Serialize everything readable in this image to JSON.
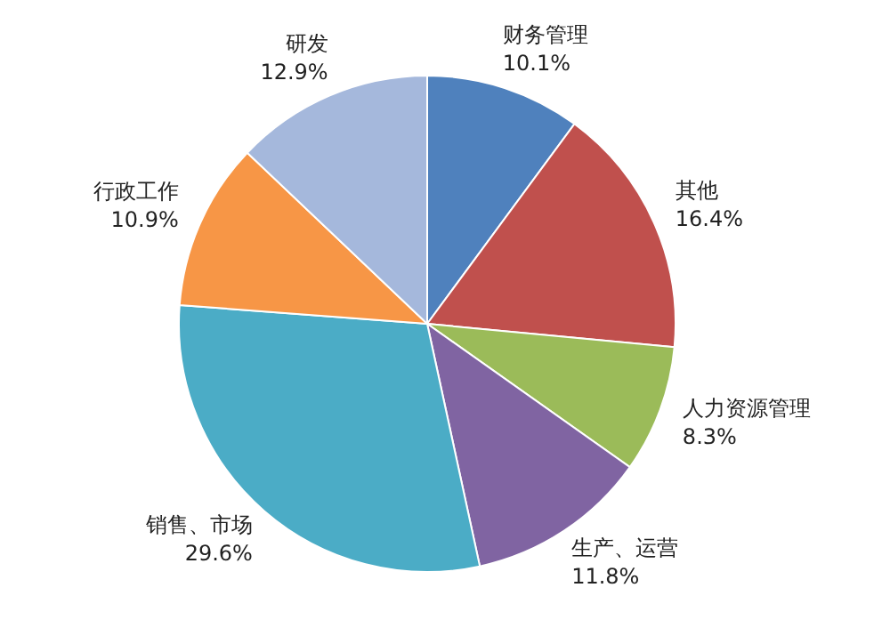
{
  "chart_data": {
    "type": "pie",
    "categories": [
      "财务管理",
      "其他",
      "人力资源管理",
      "生产、运营",
      "销售、市场",
      "行政工作",
      "研发"
    ],
    "values": [
      10.1,
      16.4,
      8.3,
      11.8,
      29.6,
      10.9,
      12.9
    ],
    "colors": [
      "#4f81bd",
      "#c0504d",
      "#9bbb59",
      "#8064a2",
      "#4bacc6",
      "#f79646",
      "#a5b8dc"
    ],
    "value_labels": [
      "10.1%",
      "16.4%",
      "8.3%",
      "11.8%",
      "29.6%",
      "10.9%",
      "12.9%"
    ],
    "legend": false
  }
}
